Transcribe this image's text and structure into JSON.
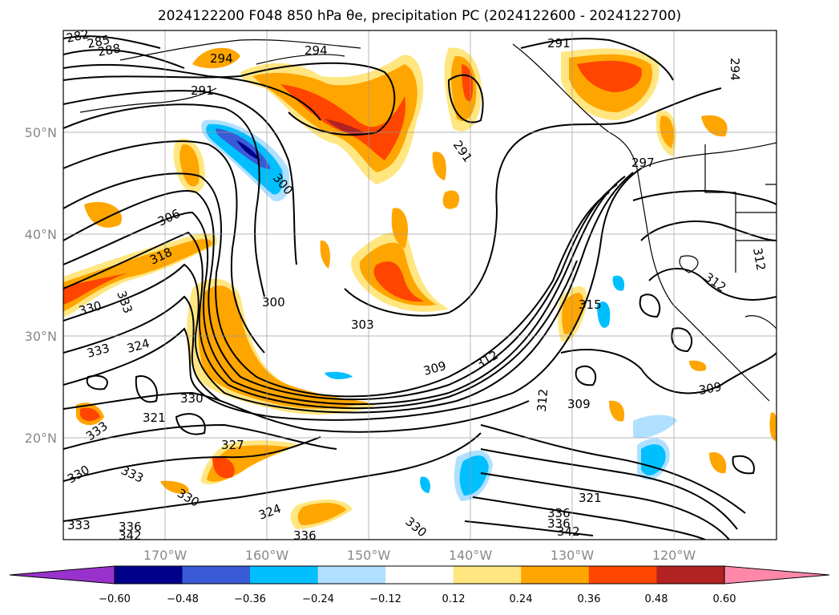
{
  "title": "2024122200 F048 850 hPa θe, precipitation PC (2024122600 - 2024122700)",
  "map": {
    "lon_labels": [
      "170°W",
      "160°W",
      "150°W",
      "140°W",
      "130°W",
      "120°W"
    ],
    "lat_labels": [
      "50°N",
      "40°N",
      "30°N",
      "20°N"
    ]
  },
  "contour_labels": [
    {
      "text": "282",
      "name": "contour-label-282"
    },
    {
      "text": "285",
      "name": "contour-label-285"
    },
    {
      "text": "288",
      "name": "contour-label-288"
    },
    {
      "text": "294",
      "name": "contour-label-294-a"
    },
    {
      "text": "294",
      "name": "contour-label-294-b"
    },
    {
      "text": "291",
      "name": "contour-label-291-a"
    },
    {
      "text": "291",
      "name": "contour-label-291-b"
    },
    {
      "text": "291",
      "name": "contour-label-291-c"
    },
    {
      "text": "294",
      "name": "contour-label-294-c"
    },
    {
      "text": "297",
      "name": "contour-label-297"
    },
    {
      "text": "300",
      "name": "contour-label-300-a"
    },
    {
      "text": "306",
      "name": "contour-label-306"
    },
    {
      "text": "318",
      "name": "contour-label-318"
    },
    {
      "text": "330",
      "name": "contour-label-330-a"
    },
    {
      "text": "333",
      "name": "contour-label-333-a"
    },
    {
      "text": "300",
      "name": "contour-label-300-b"
    },
    {
      "text": "303",
      "name": "contour-label-303"
    },
    {
      "text": "333",
      "name": "contour-label-333-b"
    },
    {
      "text": "324",
      "name": "contour-label-324-a"
    },
    {
      "text": "330",
      "name": "contour-label-330-b"
    },
    {
      "text": "321",
      "name": "contour-label-321-a"
    },
    {
      "text": "333",
      "name": "contour-label-333-c"
    },
    {
      "text": "330",
      "name": "contour-label-330-c"
    },
    {
      "text": "333",
      "name": "contour-label-333-d"
    },
    {
      "text": "327",
      "name": "contour-label-327"
    },
    {
      "text": "330",
      "name": "contour-label-330-d"
    },
    {
      "text": "324",
      "name": "contour-label-324-b"
    },
    {
      "text": "333",
      "name": "contour-label-333-e"
    },
    {
      "text": "336",
      "name": "contour-label-336-a"
    },
    {
      "text": "342",
      "name": "contour-label-342-a"
    },
    {
      "text": "336",
      "name": "contour-label-336-b"
    },
    {
      "text": "330",
      "name": "contour-label-330-e"
    },
    {
      "text": "309",
      "name": "contour-label-309-a"
    },
    {
      "text": "312",
      "name": "contour-label-312-a"
    },
    {
      "text": "315",
      "name": "contour-label-315"
    },
    {
      "text": "312",
      "name": "contour-label-312-b"
    },
    {
      "text": "309",
      "name": "contour-label-309-b"
    },
    {
      "text": "309",
      "name": "contour-label-309-c"
    },
    {
      "text": "312",
      "name": "contour-label-312-c"
    },
    {
      "text": "312",
      "name": "contour-label-312-d"
    },
    {
      "text": "321",
      "name": "contour-label-321-b"
    },
    {
      "text": "336",
      "name": "contour-label-336-c"
    },
    {
      "text": "336",
      "name": "contour-label-336-d"
    },
    {
      "text": "342",
      "name": "contour-label-342-b"
    }
  ],
  "colorbar": {
    "ticks": [
      "−0.60",
      "−0.48",
      "−0.36",
      "−0.24",
      "−0.12",
      "0.12",
      "0.24",
      "0.36",
      "0.48",
      "0.60"
    ],
    "colors": [
      "#9932cc",
      "#00008b",
      "#3a5bd6",
      "#00bfff",
      "#b0e0ff",
      "#ffffff",
      "#ffe680",
      "#ffa500",
      "#ff4500",
      "#b22222",
      "#ff88aa"
    ]
  }
}
